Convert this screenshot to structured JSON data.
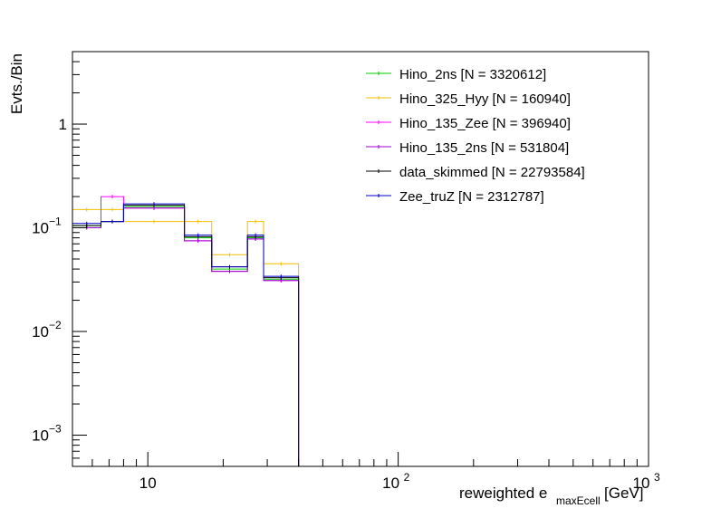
{
  "chart_data": {
    "type": "line",
    "title": "",
    "xlabel_main": "reweighted e",
    "xlabel_sub": "maxEcell",
    "xlabel_unit": "[GeV]",
    "ylabel": "Evts./Bin",
    "xscale": "log",
    "yscale": "log",
    "xlim": [
      5,
      1000
    ],
    "ylim": [
      0.0005,
      5
    ],
    "legend_placement": "top-right",
    "x_tick_labels": [
      {
        "value": 10,
        "base": "10",
        "exp": ""
      },
      {
        "value": 100,
        "base": "10",
        "exp": "2"
      },
      {
        "value": 1000,
        "base": "10",
        "exp": "3"
      }
    ],
    "y_tick_labels": [
      {
        "value": 1,
        "base": "1",
        "exp": ""
      },
      {
        "value": 0.1,
        "base": "10",
        "exp": "−1"
      },
      {
        "value": 0.01,
        "base": "10",
        "exp": "−2"
      },
      {
        "value": 0.001,
        "base": "10",
        "exp": "−3"
      }
    ],
    "bin_edges": [
      5,
      6.5,
      8,
      14,
      18,
      25,
      29,
      40,
      1000
    ],
    "series": [
      {
        "name": "Hino_2ns [N = 3320612]",
        "color": "#00cc00",
        "values": [
          0.105,
          0.115,
          0.16,
          0.08,
          0.04,
          0.08,
          0.032,
          0
        ]
      },
      {
        "name": "Hino_325_Hyy [N = 160940]",
        "color": "#f0c000",
        "values": [
          0.15,
          0.15,
          0.115,
          0.115,
          0.055,
          0.115,
          0.045,
          0
        ]
      },
      {
        "name": "Hino_135_Zee [N = 396940]",
        "color": "#ff00ff",
        "values": [
          0.1,
          0.2,
          0.155,
          0.075,
          0.038,
          0.078,
          0.031,
          0
        ]
      },
      {
        "name": "Hino_135_2ns [N = 531804]",
        "color": "#9900cc",
        "values": [
          0.1,
          0.115,
          0.155,
          0.075,
          0.038,
          0.078,
          0.031,
          0
        ]
      },
      {
        "name": "data_skimmed [N = 22793584]",
        "color": "#000000",
        "values": [
          0.105,
          0.115,
          0.165,
          0.082,
          0.042,
          0.082,
          0.033,
          0
        ]
      },
      {
        "name": "Zee_truZ [N = 2312787]",
        "color": "#0000cc",
        "values": [
          0.11,
          0.115,
          0.17,
          0.085,
          0.042,
          0.085,
          0.034,
          0
        ]
      }
    ]
  }
}
